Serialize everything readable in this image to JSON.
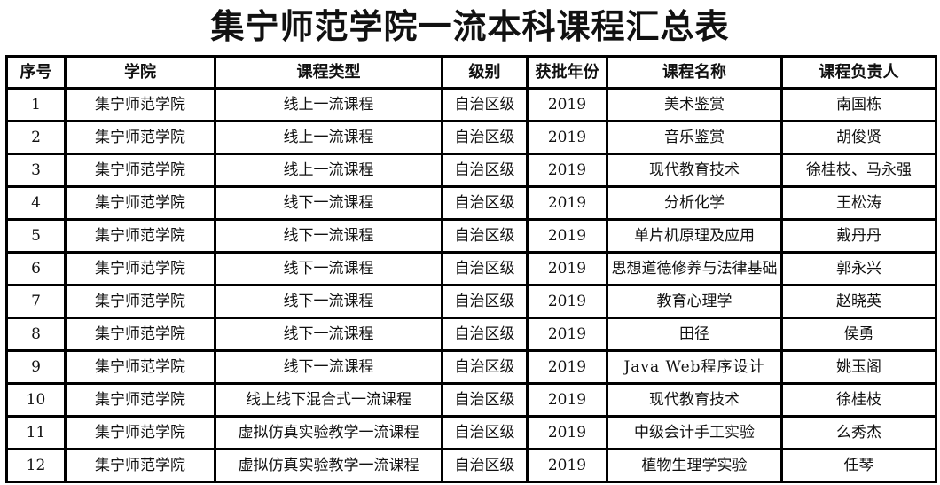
{
  "title": "集宁师范学院一流本科课程汇总表",
  "table": {
    "headers": [
      "序号",
      "学院",
      "课程类型",
      "级别",
      "获批年份",
      "课程名称",
      "课程负责人"
    ],
    "rows": [
      [
        "1",
        "集宁师范学院",
        "线上一流课程",
        "自治区级",
        "2019",
        "美术鉴赏",
        "南国栋"
      ],
      [
        "2",
        "集宁师范学院",
        "线上一流课程",
        "自治区级",
        "2019",
        "音乐鉴赏",
        "胡俊贤"
      ],
      [
        "3",
        "集宁师范学院",
        "线上一流课程",
        "自治区级",
        "2019",
        "现代教育技术",
        "徐桂枝、马永强"
      ],
      [
        "4",
        "集宁师范学院",
        "线下一流课程",
        "自治区级",
        "2019",
        "分析化学",
        "王松涛"
      ],
      [
        "5",
        "集宁师范学院",
        "线下一流课程",
        "自治区级",
        "2019",
        "单片机原理及应用",
        "戴丹丹"
      ],
      [
        "6",
        "集宁师范学院",
        "线下一流课程",
        "自治区级",
        "2019",
        "思想道德修养与法律基础",
        "郭永兴"
      ],
      [
        "7",
        "集宁师范学院",
        "线下一流课程",
        "自治区级",
        "2019",
        "教育心理学",
        "赵晓英"
      ],
      [
        "8",
        "集宁师范学院",
        "线下一流课程",
        "自治区级",
        "2019",
        "田径",
        "侯勇"
      ],
      [
        "9",
        "集宁师范学院",
        "线下一流课程",
        "自治区级",
        "2019",
        "Java Web程序设计",
        "姚玉阁"
      ],
      [
        "10",
        "集宁师范学院",
        "线上线下混合式一流课程",
        "自治区级",
        "2019",
        "现代教育技术",
        "徐桂枝"
      ],
      [
        "11",
        "集宁师范学院",
        "虚拟仿真实验教学一流课程",
        "自治区级",
        "2019",
        "中级会计手工实验",
        "么秀杰"
      ],
      [
        "12",
        "集宁师范学院",
        "虚拟仿真实验教学一流课程",
        "自治区级",
        "2019",
        "植物生理学实验",
        "任琴"
      ]
    ]
  }
}
